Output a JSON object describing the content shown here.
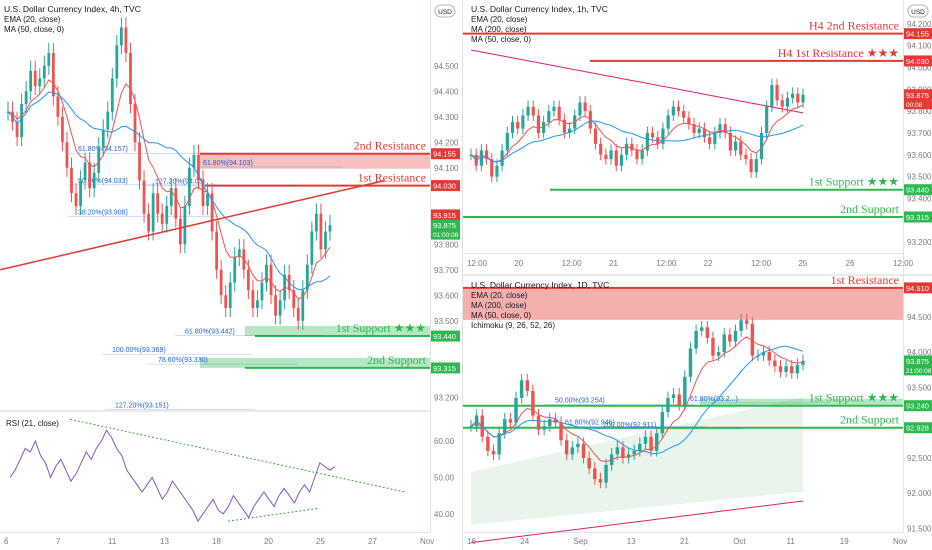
{
  "colors": {
    "red": "#e53935",
    "green": "#2fb84f",
    "up": "#26a69a",
    "down": "#ef5350",
    "rsi": "#7e57c2",
    "ema": "#ef5350",
    "ma50": "#2196f3",
    "ma200": "#e91e63",
    "fib": "#1e63d6"
  },
  "chart_data": [
    {
      "type": "line",
      "panel": "left-4h",
      "header": {
        "symbol": "U.S. Dollar Currency Index, 4h, TVC",
        "ind1": "EMA (20, close)",
        "ind2": "MA (50, close, 0)"
      },
      "ylim": [
        93.15,
        94.75
      ],
      "yticks": [
        {
          "v": 94.5,
          "t": "94.500"
        },
        {
          "v": 94.4,
          "t": "94.400"
        },
        {
          "v": 94.3,
          "t": "94.300"
        },
        {
          "v": 94.2,
          "t": "94.200"
        },
        {
          "v": 94.1,
          "t": "94.100"
        },
        {
          "v": 93.8,
          "t": "93.800"
        },
        {
          "v": 93.7,
          "t": "93.700"
        },
        {
          "v": 93.6,
          "t": "93.600"
        },
        {
          "v": 93.5,
          "t": "93.500"
        },
        {
          "v": 93.2,
          "t": "93.200"
        }
      ],
      "xticks": [
        "6",
        "7",
        "11",
        "13",
        "18",
        "20",
        "25",
        "27",
        "Nov"
      ],
      "price_badges": [
        {
          "v": 94.155,
          "t": "94.155",
          "c": "red"
        },
        {
          "v": 94.03,
          "t": "94.030",
          "c": "red"
        },
        {
          "v": 93.915,
          "t": "93.915",
          "c": "red"
        },
        {
          "v": 93.875,
          "t": "93.875",
          "t2": "01:00:08",
          "c": "green"
        },
        {
          "v": 93.44,
          "t": "93.440",
          "c": "green"
        },
        {
          "v": 93.315,
          "t": "93.315",
          "c": "green"
        }
      ],
      "levels": [
        {
          "name": "2nd Resistance",
          "value": 94.155,
          "kind": "resistance"
        },
        {
          "name": "1st Resistance",
          "value": 94.03,
          "kind": "resistance"
        },
        {
          "name": "1st Support ★★★",
          "value": 93.44,
          "kind": "support"
        },
        {
          "name": "2nd Support",
          "value": 93.315,
          "kind": "support"
        }
      ],
      "fib_labels": [
        {
          "t": "61.80%(94.157)",
          "v": 94.157
        },
        {
          "t": "50.00%(94.033)",
          "v": 94.033
        },
        {
          "t": "38.20%(93.908)",
          "v": 93.908
        },
        {
          "t": "61.80%(94.103)",
          "v": 94.103
        },
        {
          "t": "127.20%(94.03)",
          "v": 94.03
        },
        {
          "t": "61.80%(93.442)",
          "v": 93.442
        },
        {
          "t": "100.00%(93.369)",
          "v": 93.369
        },
        {
          "t": "78.60%(93.330)",
          "v": 93.33
        },
        {
          "t": "127.20%(93.151)",
          "v": 93.151
        }
      ],
      "close": [
        94.32,
        94.28,
        94.22,
        94.35,
        94.4,
        94.48,
        94.42,
        94.45,
        94.5,
        94.55,
        94.38,
        94.3,
        94.2,
        94.1,
        94.0,
        93.95,
        94.05,
        94.12,
        94.02,
        94.08,
        94.18,
        94.25,
        94.32,
        94.45,
        94.58,
        94.65,
        94.55,
        94.35,
        94.2,
        94.05,
        93.92,
        93.85,
        94.0,
        93.92,
        93.88,
        93.95,
        94.02,
        93.9,
        93.8,
        93.95,
        94.1,
        94.15,
        94.05,
        93.95,
        94.0,
        93.85,
        93.7,
        93.6,
        93.55,
        93.65,
        93.75,
        93.78,
        93.7,
        93.62,
        93.55,
        93.58,
        93.65,
        93.72,
        93.6,
        93.52,
        93.58,
        93.68,
        93.62,
        93.55,
        93.5,
        93.62,
        93.72,
        93.85,
        93.92,
        93.78,
        93.85,
        93.875
      ]
    },
    {
      "type": "line",
      "panel": "left-rsi",
      "header": {
        "ind": "RSI (21, close)"
      },
      "ylim": [
        35,
        68
      ],
      "yticks": [
        {
          "v": 60,
          "t": "60.00"
        },
        {
          "v": 50,
          "t": "50.00"
        },
        {
          "v": 40,
          "t": "40.00"
        }
      ],
      "values": [
        50,
        52,
        55,
        58,
        57,
        60,
        56,
        54,
        50,
        53,
        55,
        52,
        49,
        51,
        54,
        57,
        55,
        58,
        60,
        63,
        61,
        58,
        56,
        52,
        50,
        48,
        46,
        48,
        50,
        47,
        44,
        46,
        49,
        47,
        45,
        43,
        41,
        38,
        40,
        42,
        44,
        41,
        40,
        42,
        45,
        43,
        41,
        39,
        42,
        44,
        46,
        44,
        42,
        45,
        47,
        45,
        43,
        46,
        48,
        46,
        50,
        54,
        53,
        52,
        53
      ]
    },
    {
      "type": "line",
      "panel": "right-1h",
      "header": {
        "symbol": "U.S. Dollar Currency Index, 1h, TVC",
        "ind1": "EMA (20, close)",
        "ind2": "MA (200, close)",
        "ind3": "MA (50, close, 0)"
      },
      "ylim": [
        93.15,
        94.3
      ],
      "yticks": [
        {
          "v": 94.2,
          "t": "94.200"
        },
        {
          "v": 94.1,
          "t": "94.100"
        },
        {
          "v": 94.0,
          "t": "94.000"
        },
        {
          "v": 93.9,
          "t": "93.900"
        },
        {
          "v": 93.8,
          "t": "93.800"
        },
        {
          "v": 93.7,
          "t": "93.700"
        },
        {
          "v": 93.6,
          "t": "93.600"
        },
        {
          "v": 93.5,
          "t": "93.500"
        },
        {
          "v": 93.4,
          "t": "93.400"
        },
        {
          "v": 93.2,
          "t": "93.200"
        }
      ],
      "xticks": [
        "12:00",
        "20",
        "12:00",
        "21",
        "12:00",
        "22",
        "12:00",
        "25",
        "26",
        "12:00"
      ],
      "price_badges": [
        {
          "v": 94.155,
          "t": "94.155",
          "c": "red"
        },
        {
          "v": 94.03,
          "t": "94.030",
          "c": "red"
        },
        {
          "v": 93.875,
          "t": "93.875",
          "t2": "00:08",
          "c": "red"
        },
        {
          "v": 93.44,
          "t": "93.440",
          "c": "green"
        },
        {
          "v": 93.315,
          "t": "93.315",
          "c": "green"
        }
      ],
      "levels": [
        {
          "name": "H4 2nd Resistance",
          "value": 94.155,
          "kind": "resistance"
        },
        {
          "name": "H4 1st Resistance ★★★",
          "value": 94.03,
          "kind": "resistance"
        },
        {
          "name": "1st Support ★★★",
          "value": 93.44,
          "kind": "support"
        },
        {
          "name": "2nd Support",
          "value": 93.315,
          "kind": "support"
        }
      ],
      "close": [
        93.6,
        93.55,
        93.62,
        93.58,
        93.5,
        93.55,
        93.62,
        93.7,
        93.75,
        93.72,
        93.78,
        93.82,
        93.78,
        93.7,
        93.75,
        93.8,
        93.82,
        93.76,
        93.7,
        93.72,
        93.78,
        93.84,
        93.8,
        93.72,
        93.65,
        93.6,
        93.58,
        93.62,
        93.55,
        93.6,
        93.65,
        93.62,
        93.58,
        93.62,
        93.7,
        93.68,
        93.65,
        93.72,
        93.78,
        93.82,
        93.8,
        93.77,
        93.74,
        93.7,
        93.72,
        93.68,
        93.65,
        93.7,
        93.74,
        93.7,
        93.62,
        93.66,
        93.6,
        93.58,
        93.52,
        93.58,
        93.7,
        93.82,
        93.92,
        93.85,
        93.82,
        93.86,
        93.88,
        93.84,
        93.875
      ]
    },
    {
      "type": "line",
      "panel": "right-1d",
      "header": {
        "symbol": "U.S. Dollar Currency Index, 1D, TVC",
        "ind1": "EMA (20, close)",
        "ind2": "MA (200, close)",
        "ind3": "MA (50, close, 0)",
        "ind4": "Ichimoku (9, 26, 52, 26)"
      },
      "ylim": [
        91.45,
        95.05
      ],
      "yticks": [
        {
          "v": 94.5,
          "t": "94.500"
        },
        {
          "v": 94.0,
          "t": "94.000"
        },
        {
          "v": 93.5,
          "t": "93.500"
        },
        {
          "v": 92.5,
          "t": "92.500"
        },
        {
          "v": 92.0,
          "t": "92.000"
        },
        {
          "v": 91.5,
          "t": "91.500"
        }
      ],
      "xticks": [
        "16",
        "24",
        "Sep",
        "13",
        "21",
        "Oct",
        "11",
        "19",
        "Nov"
      ],
      "price_badges": [
        {
          "v": 94.91,
          "t": "94.910",
          "c": "red"
        },
        {
          "v": 93.875,
          "t": "93.875",
          "t2": "21:00:08",
          "c": "green"
        },
        {
          "v": 93.24,
          "t": "93.240",
          "c": "green"
        },
        {
          "v": 92.928,
          "t": "92.928",
          "c": "green"
        }
      ],
      "levels": [
        {
          "name": "1st Resistance",
          "value": 94.91,
          "kind": "resistance"
        },
        {
          "name": "1st Support ★★★",
          "value": 93.24,
          "kind": "support"
        },
        {
          "name": "2nd Support",
          "value": 92.928,
          "kind": "support"
        }
      ],
      "fib_labels": [
        {
          "t": "50.00%(93.254)",
          "v": 93.254
        },
        {
          "t": "61.80%(92.946)",
          "v": 92.946
        },
        {
          "t": "200.00%(92.911)",
          "v": 92.911
        },
        {
          "t": "61.80%(93.2...)",
          "v": 93.28
        }
      ],
      "close": [
        92.95,
        93.1,
        92.8,
        92.6,
        92.55,
        92.85,
        93.05,
        93.0,
        93.35,
        93.6,
        93.45,
        93.1,
        92.9,
        92.95,
        93.05,
        93.0,
        92.75,
        92.55,
        92.65,
        92.7,
        92.5,
        92.35,
        92.2,
        92.15,
        92.4,
        92.55,
        92.65,
        92.5,
        92.55,
        92.6,
        92.7,
        92.8,
        92.6,
        92.85,
        93.15,
        93.35,
        93.4,
        93.25,
        93.65,
        94.05,
        94.3,
        94.35,
        94.2,
        93.95,
        94.0,
        94.25,
        94.15,
        94.3,
        94.45,
        94.4,
        93.95,
        93.95,
        94.0,
        93.88,
        93.8,
        93.72,
        93.8,
        93.7,
        93.82,
        93.875
      ]
    }
  ]
}
